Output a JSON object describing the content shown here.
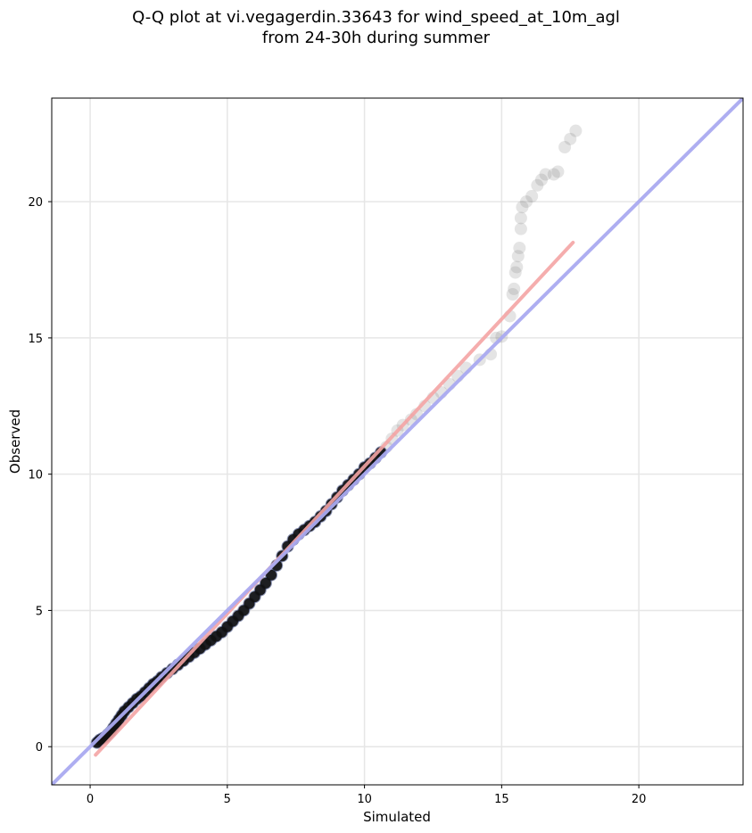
{
  "chart_data": {
    "type": "scatter",
    "title_line1": "Q-Q plot at vi.vegagerdin.33643 for wind_speed_at_10m_agl",
    "title_line2": "from 24-30h during summer",
    "xlabel": "Simulated",
    "ylabel": "Observed",
    "xlim": [
      -1.4,
      23.8
    ],
    "ylim": [
      -1.4,
      23.8
    ],
    "xticks": [
      0,
      5,
      10,
      15,
      20
    ],
    "yticks": [
      0,
      5,
      10,
      15,
      20
    ],
    "grid": true,
    "reference_line": {
      "name": "1:1 line",
      "color": "#aaaaf0",
      "from": [
        -1.4,
        -1.4
      ],
      "to": [
        23.8,
        23.8
      ]
    },
    "fit_line": {
      "name": "regression",
      "color": "#f4a4a4",
      "from": [
        0.2,
        -0.3
      ],
      "to": [
        17.6,
        18.5
      ]
    },
    "points_dense": [
      [
        0.25,
        0.15
      ],
      [
        0.35,
        0.25
      ],
      [
        0.45,
        0.3
      ],
      [
        0.55,
        0.35
      ],
      [
        0.65,
        0.45
      ],
      [
        0.75,
        0.55
      ],
      [
        0.85,
        0.7
      ],
      [
        0.95,
        0.85
      ],
      [
        1.05,
        1.0
      ],
      [
        1.15,
        1.15
      ],
      [
        1.25,
        1.3
      ],
      [
        1.4,
        1.45
      ],
      [
        1.55,
        1.6
      ],
      [
        1.7,
        1.75
      ],
      [
        1.85,
        1.85
      ],
      [
        2.0,
        2.0
      ],
      [
        2.15,
        2.15
      ],
      [
        2.3,
        2.3
      ],
      [
        2.45,
        2.4
      ],
      [
        2.6,
        2.55
      ],
      [
        2.8,
        2.7
      ],
      [
        3.0,
        2.85
      ],
      [
        3.2,
        3.0
      ],
      [
        3.4,
        3.15
      ],
      [
        3.6,
        3.3
      ],
      [
        3.8,
        3.45
      ],
      [
        4.0,
        3.6
      ],
      [
        4.2,
        3.75
      ],
      [
        4.4,
        3.9
      ],
      [
        4.6,
        4.05
      ],
      [
        4.8,
        4.2
      ],
      [
        5.0,
        4.4
      ],
      [
        5.2,
        4.6
      ],
      [
        5.4,
        4.8
      ],
      [
        5.6,
        5.0
      ],
      [
        5.8,
        5.25
      ],
      [
        6.0,
        5.5
      ],
      [
        6.2,
        5.75
      ],
      [
        6.4,
        6.0
      ],
      [
        6.6,
        6.3
      ],
      [
        6.8,
        6.65
      ],
      [
        7.0,
        7.0
      ],
      [
        7.2,
        7.35
      ],
      [
        7.4,
        7.6
      ],
      [
        7.6,
        7.8
      ],
      [
        7.8,
        7.95
      ],
      [
        8.0,
        8.1
      ],
      [
        8.2,
        8.25
      ],
      [
        8.4,
        8.45
      ],
      [
        8.6,
        8.65
      ],
      [
        8.8,
        8.9
      ],
      [
        9.0,
        9.15
      ],
      [
        9.2,
        9.4
      ],
      [
        9.4,
        9.6
      ],
      [
        9.6,
        9.8
      ],
      [
        9.8,
        10.0
      ],
      [
        10.0,
        10.25
      ],
      [
        10.2,
        10.4
      ],
      [
        10.4,
        10.6
      ],
      [
        10.6,
        10.8
      ]
    ],
    "points_sparse": [
      [
        10.8,
        11.0
      ],
      [
        11.0,
        11.3
      ],
      [
        11.2,
        11.6
      ],
      [
        11.4,
        11.8
      ],
      [
        11.7,
        12.0
      ],
      [
        11.9,
        12.2
      ],
      [
        12.2,
        12.5
      ],
      [
        12.5,
        12.8
      ],
      [
        12.8,
        13.0
      ],
      [
        13.1,
        13.3
      ],
      [
        13.4,
        13.6
      ],
      [
        13.7,
        13.9
      ],
      [
        14.2,
        14.2
      ],
      [
        14.6,
        14.4
      ],
      [
        14.8,
        15.0
      ],
      [
        15.0,
        15.05
      ],
      [
        15.3,
        15.8
      ],
      [
        15.4,
        16.6
      ],
      [
        15.45,
        16.8
      ],
      [
        15.5,
        17.4
      ],
      [
        15.55,
        17.6
      ],
      [
        15.6,
        18.0
      ],
      [
        15.65,
        18.3
      ],
      [
        15.7,
        19.0
      ],
      [
        15.7,
        19.4
      ],
      [
        15.75,
        19.8
      ],
      [
        15.9,
        20.0
      ],
      [
        16.1,
        20.2
      ],
      [
        16.3,
        20.6
      ],
      [
        16.45,
        20.8
      ],
      [
        16.6,
        21.0
      ],
      [
        16.9,
        21.0
      ],
      [
        17.05,
        21.1
      ],
      [
        17.3,
        22.0
      ],
      [
        17.5,
        22.3
      ],
      [
        17.7,
        22.6
      ]
    ]
  }
}
